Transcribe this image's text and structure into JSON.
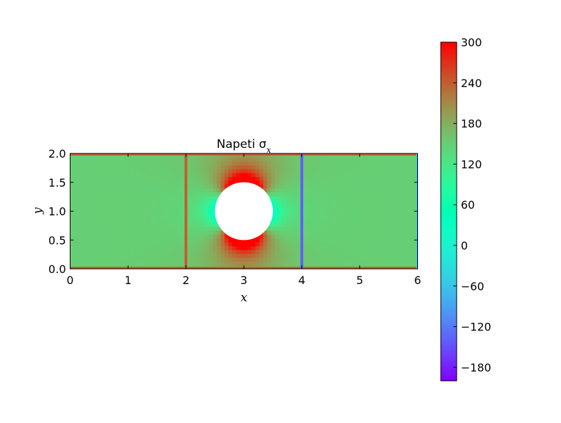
{
  "chart_data": {
    "type": "heatmap",
    "title": "Napeti σ",
    "title_sub": "x",
    "xlabel": "x",
    "ylabel": "y",
    "xlim": [
      0,
      6
    ],
    "ylim": [
      0,
      2
    ],
    "x_ticks": [
      "0",
      "1",
      "2",
      "3",
      "4",
      "5",
      "6"
    ],
    "y_ticks": [
      "0.0",
      "0.5",
      "1.0",
      "1.5",
      "2.0"
    ],
    "hole": {
      "cx": 3.0,
      "cy": 1.0,
      "r": 0.5
    },
    "colorbar": {
      "min": -200,
      "max": 300,
      "ticks": [
        "300",
        "240",
        "180",
        "120",
        "60",
        "0",
        "−60",
        "−120",
        "−180"
      ],
      "tick_values": [
        300,
        240,
        180,
        120,
        60,
        0,
        -60,
        -120,
        -180
      ]
    },
    "field": {
      "far_field_stress": 150,
      "max_stress_top_bottom_of_hole": 300,
      "min_stress_sides_of_hole": 0
    },
    "artifact_lines": [
      {
        "x": 2.0,
        "stress": 240
      },
      {
        "x": 4.0,
        "stress": -140
      },
      {
        "x": 6.0,
        "stress": -60
      }
    ],
    "colormap": "rainbow"
  }
}
